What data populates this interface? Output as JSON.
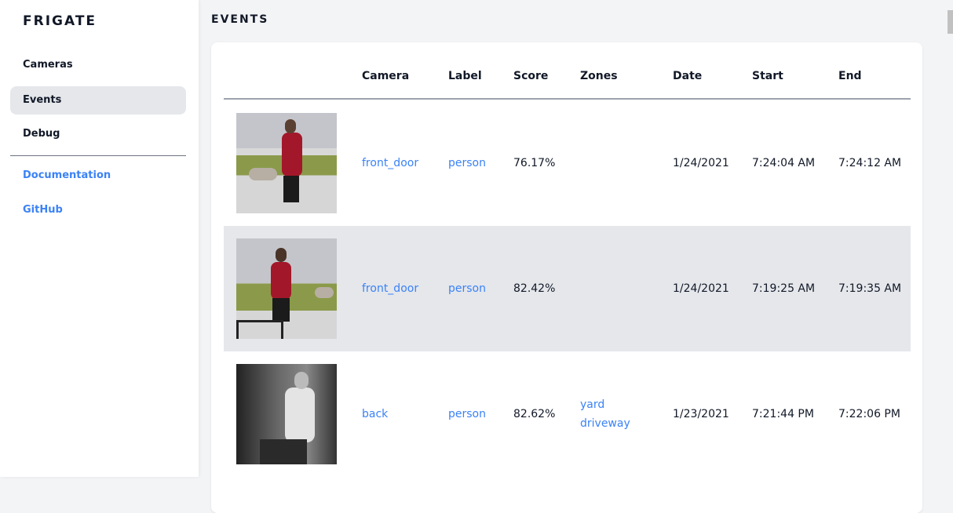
{
  "sidebar": {
    "brand": "FRIGATE",
    "items": [
      {
        "label": "Cameras"
      },
      {
        "label": "Events",
        "active": true
      },
      {
        "label": "Debug"
      }
    ],
    "links": [
      {
        "label": "Documentation"
      },
      {
        "label": "GitHub"
      }
    ]
  },
  "page": {
    "title": "EVENTS"
  },
  "table": {
    "headers": [
      "Camera",
      "Label",
      "Score",
      "Zones",
      "Date",
      "Start",
      "End"
    ],
    "rows": [
      {
        "camera": "front_door",
        "label": "person",
        "score": "76.17%",
        "zones": [
          "",
          ""
        ],
        "date": "1/24/2021",
        "start": "7:24:04 AM",
        "end": "7:24:12 AM"
      },
      {
        "camera": "front_door",
        "label": "person",
        "score": "82.42%",
        "zones": [
          "",
          ""
        ],
        "date": "1/24/2021",
        "start": "7:19:25 AM",
        "end": "7:19:35 AM"
      },
      {
        "camera": "back",
        "label": "person",
        "score": "82.62%",
        "zones": [
          "yard",
          "driveway"
        ],
        "date": "1/23/2021",
        "start": "7:21:44 PM",
        "end": "7:22:06 PM"
      }
    ]
  },
  "colors": {
    "accent": "#3b82f6",
    "active_bg": "#e5e7eb"
  }
}
